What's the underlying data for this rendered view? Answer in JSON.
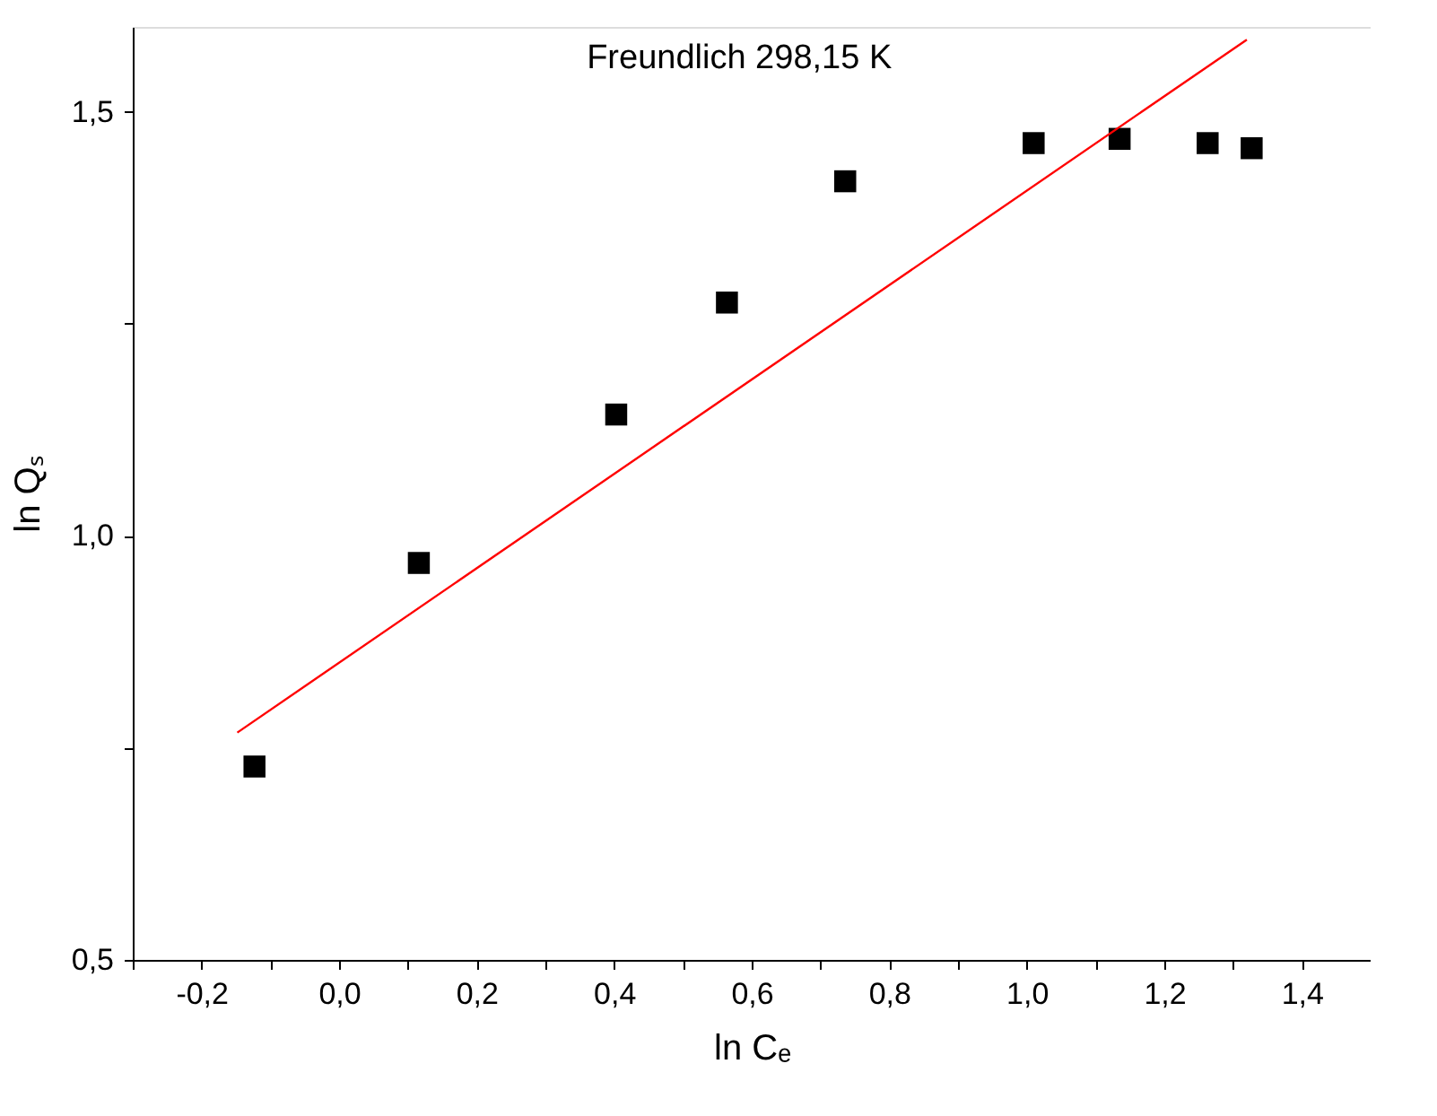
{
  "chart_data": {
    "type": "scatter",
    "xlabel": "ln Cₑ",
    "ylabel": "ln Qₛ",
    "annotations": [
      "Freundlich 298,15 K"
    ],
    "xlim": [
      -0.3,
      1.5
    ],
    "ylim": [
      0.5,
      1.6
    ],
    "xticks": [
      {
        "value": -0.3,
        "label": null
      },
      {
        "value": -0.2,
        "label": "-0,2"
      },
      {
        "value": -0.1,
        "label": null
      },
      {
        "value": 0.0,
        "label": "0,0"
      },
      {
        "value": 0.1,
        "label": null
      },
      {
        "value": 0.2,
        "label": "0,2"
      },
      {
        "value": 0.3,
        "label": null
      },
      {
        "value": 0.4,
        "label": "0,4"
      },
      {
        "value": 0.5,
        "label": null
      },
      {
        "value": 0.6,
        "label": "0,6"
      },
      {
        "value": 0.7,
        "label": null
      },
      {
        "value": 0.8,
        "label": "0,8"
      },
      {
        "value": 0.9,
        "label": null
      },
      {
        "value": 1.0,
        "label": "1,0"
      },
      {
        "value": 1.1,
        "label": null
      },
      {
        "value": 1.2,
        "label": "1,2"
      },
      {
        "value": 1.3,
        "label": null
      },
      {
        "value": 1.4,
        "label": "1,4"
      }
    ],
    "yticks": [
      {
        "value": 0.5,
        "label": "0,5"
      },
      {
        "value": 0.75,
        "label": null
      },
      {
        "value": 1.0,
        "label": "1,0"
      },
      {
        "value": 1.25,
        "label": null
      },
      {
        "value": 1.5,
        "label": "1,5"
      }
    ],
    "grid": false,
    "series": [
      {
        "type": "scatter",
        "marker": "square",
        "color": "#000000",
        "x": [
          -0.123,
          0.116,
          0.403,
          0.564,
          0.736,
          1.01,
          1.135,
          1.263,
          1.327
        ],
        "values": [
          0.728,
          0.968,
          1.143,
          1.275,
          1.418,
          1.463,
          1.468,
          1.463,
          1.457
        ]
      },
      {
        "type": "line",
        "color": "#ff0000",
        "line_style": "solid",
        "x": [
          -0.148,
          1.32
        ],
        "values": [
          0.768,
          1.585
        ]
      }
    ]
  }
}
